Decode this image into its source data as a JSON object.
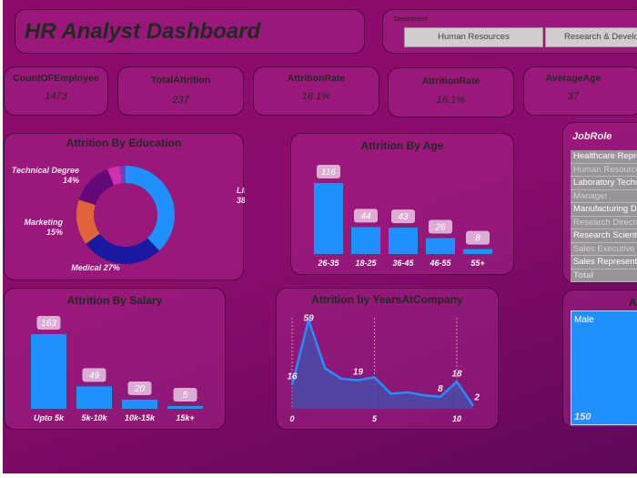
{
  "header": {
    "title": "HR Analyst Dashboard"
  },
  "department_slicer": {
    "label": "Department",
    "options": [
      "Human Resources",
      "Research & Development"
    ]
  },
  "kpis": [
    {
      "label": "CountOFEmployee",
      "value": "1473"
    },
    {
      "label": "TotalAttrition",
      "value": "237"
    },
    {
      "label": "AttritionRate",
      "value": "16.1%"
    },
    {
      "label": "AttritionRate",
      "value": "16.1%"
    },
    {
      "label": "AverageAge",
      "value": "37"
    }
  ],
  "jobrole_slicer": {
    "label": "JobRole",
    "items": [
      "Healthcare Representative",
      "Human Resources",
      "Laboratory Technician",
      "Manager",
      "Manufacturing Director",
      "Research Director",
      "Research Scientist",
      "Sales Executive",
      "Sales Representative",
      "Total"
    ]
  },
  "gender_panel": {
    "title": "Attrition By Gender",
    "label": "Male",
    "value": "150"
  },
  "colors": {
    "bar": "#1e90ff",
    "background": "#8e0a6a",
    "area": "#4a4aa8"
  },
  "chart_data": [
    {
      "type": "pie",
      "title": "Attrition By Education",
      "donut": true,
      "slices": [
        {
          "label": "Life Sciences",
          "value": 38,
          "color": "#1e90ff"
        },
        {
          "label": "Medical",
          "value": 27,
          "color": "#1a1aa0"
        },
        {
          "label": "Marketing",
          "value": 15,
          "color": "#e06438"
        },
        {
          "label": "Technical Degree",
          "value": 14,
          "color": "#640a78"
        },
        {
          "value": 4,
          "color": "#d030b0"
        },
        {
          "value": 2,
          "color": "#7040c0"
        }
      ]
    },
    {
      "type": "bar",
      "title": "Attrition By Age",
      "categories": [
        "26-35",
        "18-25",
        "36-45",
        "46-55",
        "55+"
      ],
      "values": [
        116,
        44,
        43,
        26,
        8
      ]
    },
    {
      "type": "bar",
      "title": "Attrition By Salary",
      "categories": [
        "Upto 5k",
        "5k-10k",
        "10k-15k",
        "15k+"
      ],
      "values": [
        163,
        49,
        20,
        5
      ]
    },
    {
      "type": "area",
      "title": "Attrition by YearsAtCompany",
      "x": [
        0,
        1,
        2,
        3,
        4,
        5,
        6,
        7,
        8,
        9,
        10,
        11
      ],
      "values": [
        16,
        59,
        27,
        20,
        19,
        21,
        10,
        11,
        9,
        8,
        18,
        2
      ],
      "labeled": [
        0,
        1,
        4,
        9,
        10,
        11
      ],
      "xticks": [
        0,
        5,
        10
      ]
    }
  ]
}
